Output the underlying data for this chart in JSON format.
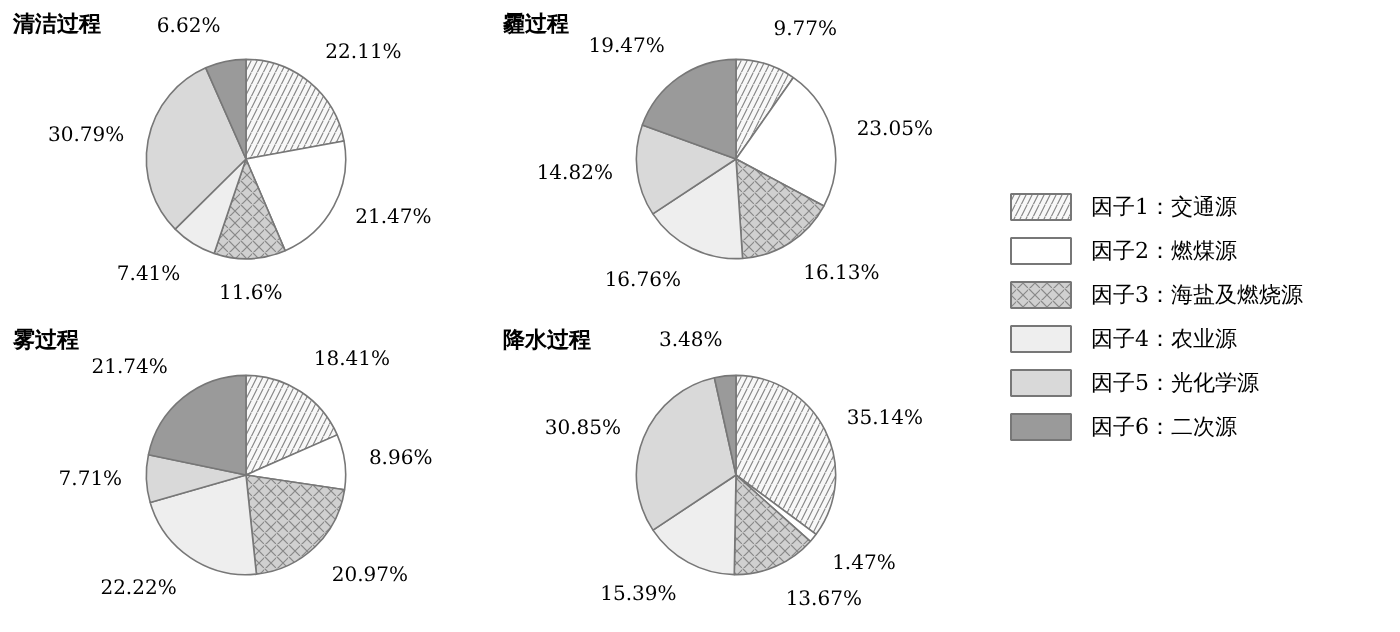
{
  "chart_data": [
    {
      "type": "pie",
      "title": "清洁过程",
      "categories": [
        "因子1：交通源",
        "因子2：燃煤源",
        "因子3：海盐及燃烧源",
        "因子4：农业源",
        "因子5：光化学源",
        "因子6：二次源"
      ],
      "values": [
        22.11,
        21.47,
        11.6,
        7.41,
        30.79,
        6.62
      ],
      "colors": [
        "#f8f8f8",
        "#ffffff",
        "#d0d0d0",
        "#eeeeee",
        "#d9d9d9",
        "#9a9a9a"
      ],
      "value_labels": [
        "22.11%",
        "21.47%",
        "11.6%",
        "7.41%",
        "30.79%",
        "6.62%"
      ],
      "legend": "right"
    },
    {
      "type": "pie",
      "title": "霾过程",
      "categories": [
        null,
        null,
        null,
        null,
        null,
        null
      ],
      "values": [
        9.77,
        23.05,
        16.13,
        16.76,
        14.82,
        19.47
      ],
      "colors": [
        "#f8f8f8",
        "#ffffff",
        "#d0d0d0",
        "#eeeeee",
        "#d9d9d9",
        "#9a9a9a"
      ],
      "value_labels": [
        "9.77%",
        "23.05%",
        "16.13%",
        "16.76%",
        "14.82%",
        "19.47%"
      ]
    },
    {
      "type": "pie",
      "title": "雾过程",
      "categories": [
        null,
        null,
        null,
        null,
        null,
        null
      ],
      "values": [
        18.41,
        8.96,
        20.97,
        22.22,
        7.71,
        21.74
      ],
      "colors": [
        "#f8f8f8",
        "#ffffff",
        "#d0d0d0",
        "#eeeeee",
        "#d9d9d9",
        "#9a9a9a"
      ],
      "value_labels": [
        "18.41%",
        "8.96%",
        "20.97%",
        "22.22%",
        "7.71%",
        "21.74%"
      ]
    },
    {
      "type": "pie",
      "title": "降水过程",
      "categories": [
        null,
        null,
        null,
        null,
        null,
        null
      ],
      "values": [
        35.14,
        1.47,
        13.67,
        15.39,
        30.85,
        3.48
      ],
      "colors": [
        "#f8f8f8",
        "#ffffff",
        "#d0d0d0",
        "#eeeeee",
        "#d9d9d9",
        "#9a9a9a"
      ],
      "value_labels": [
        "35.14%",
        "1.47%",
        "13.67%",
        "15.39%",
        "30.85%",
        "3.48%"
      ]
    }
  ]
}
